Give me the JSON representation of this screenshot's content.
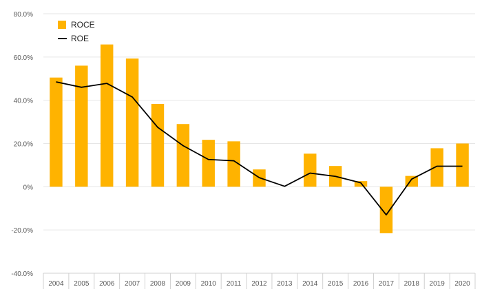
{
  "chart_data": {
    "type": "bar",
    "categories": [
      "2004",
      "2005",
      "2006",
      "2007",
      "2008",
      "2009",
      "2010",
      "2011",
      "2012",
      "2013",
      "2014",
      "2015",
      "2016",
      "2017",
      "2018",
      "2019",
      "2020"
    ],
    "series": [
      {
        "name": "ROCE",
        "type": "bar",
        "color": "#FFB300",
        "values": [
          50.5,
          56.0,
          65.8,
          59.3,
          38.3,
          29.0,
          21.7,
          21.0,
          8.0,
          0.0,
          15.3,
          9.6,
          2.6,
          -21.5,
          5.0,
          17.8,
          20.0
        ]
      },
      {
        "name": "ROE",
        "type": "line",
        "color": "#000000",
        "values": [
          48.5,
          46.0,
          47.8,
          41.5,
          27.5,
          19.0,
          12.6,
          12.0,
          4.2,
          0.2,
          6.3,
          4.8,
          1.8,
          -13.0,
          3.5,
          9.5,
          9.5
        ]
      }
    ],
    "ylim": [
      -40,
      80
    ],
    "yticks": [
      -40,
      -20,
      0,
      20,
      40,
      60,
      80
    ],
    "ytick_labels": [
      "-40.0%",
      "-20.0%",
      "0%",
      "20.0%",
      "40.0%",
      "60.0%",
      "80.0%"
    ],
    "grid": true,
    "legend_position": "top-left",
    "title": "",
    "xlabel": "",
    "ylabel": ""
  }
}
